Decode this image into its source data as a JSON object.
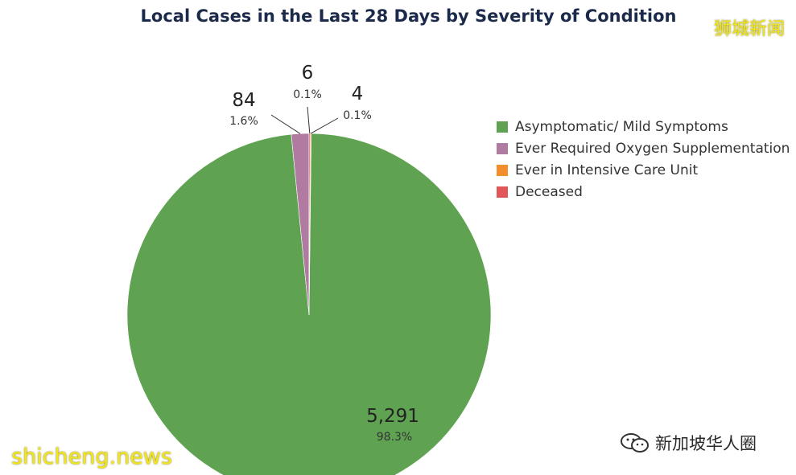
{
  "chart_data": {
    "type": "pie",
    "title": "Local Cases in the Last 28 Days by Severity of Condition",
    "categories": [
      "Asymptomatic/ Mild Symptoms",
      "Ever Required Oxygen Supplementation",
      "Ever in Intensive Care Unit",
      "Deceased"
    ],
    "values": [
      5291,
      84,
      4,
      6
    ],
    "value_labels": [
      "5,291",
      "84",
      "4",
      "6"
    ],
    "percent_labels": [
      "98.3%",
      "1.6%",
      "0.1%",
      "0.1%"
    ],
    "colors": [
      "#5fa352",
      "#b07aa1",
      "#f28e2b",
      "#e15759"
    ],
    "legend_position": "right"
  },
  "watermarks": {
    "top_right": "狮城新闻",
    "bottom_left": "shicheng.news",
    "bottom_right": "新加坡华人圈"
  }
}
